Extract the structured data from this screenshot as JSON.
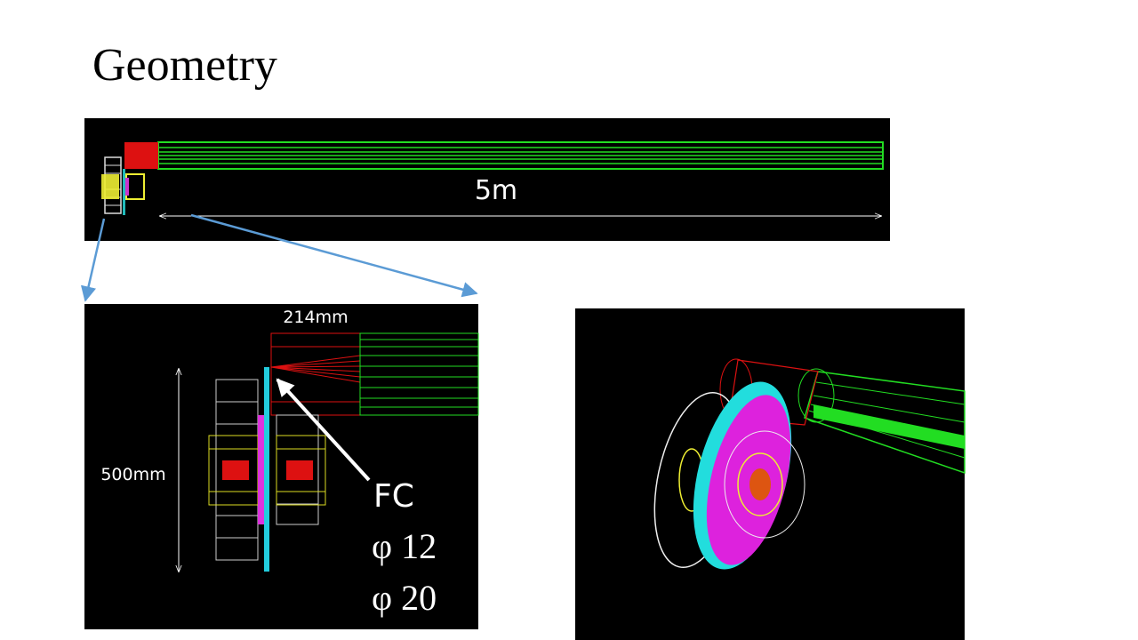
{
  "header": {
    "title": "Geometry"
  },
  "overview": {
    "length_label": "5m"
  },
  "side_view": {
    "width_label": "214mm",
    "height_label": "500mm",
    "pointer_label": "FC",
    "symbols": [
      "φ 12",
      "φ 20"
    ]
  }
}
